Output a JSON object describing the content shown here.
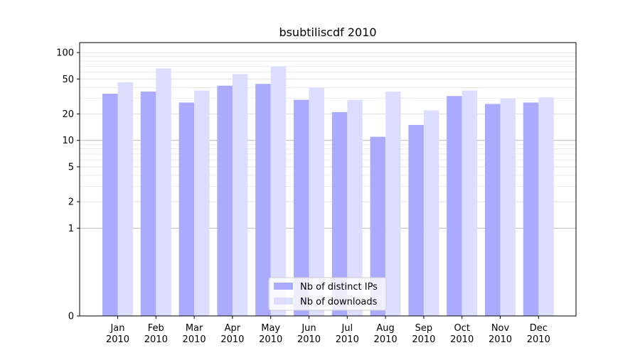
{
  "chart_data": {
    "type": "bar",
    "title": "bsubtiliscdf 2010",
    "xlabel": "",
    "ylabel": "",
    "yscale": "symlog",
    "ylim": [
      0,
      130
    ],
    "y_ticks": [
      0,
      1,
      2,
      5,
      10,
      20,
      50,
      100
    ],
    "grid": "horizontal",
    "legend_position": "bottom-center",
    "categories": [
      "Jan\n2010",
      "Feb\n2010",
      "Mar\n2010",
      "Apr\n2010",
      "May\n2010",
      "Jun\n2010",
      "Jul\n2010",
      "Aug\n2010",
      "Sep\n2010",
      "Oct\n2010",
      "Nov\n2010",
      "Dec\n2010"
    ],
    "series": [
      {
        "name": "Nb of distinct IPs",
        "color": "#aaaaff",
        "values": [
          34,
          36,
          27,
          42,
          44,
          29,
          21,
          11,
          15,
          32,
          26,
          27
        ]
      },
      {
        "name": "Nb of downloads",
        "color": "#ddddff",
        "values": [
          46,
          66,
          37,
          57,
          69,
          40,
          29,
          36,
          22,
          37,
          30,
          31
        ]
      }
    ]
  }
}
